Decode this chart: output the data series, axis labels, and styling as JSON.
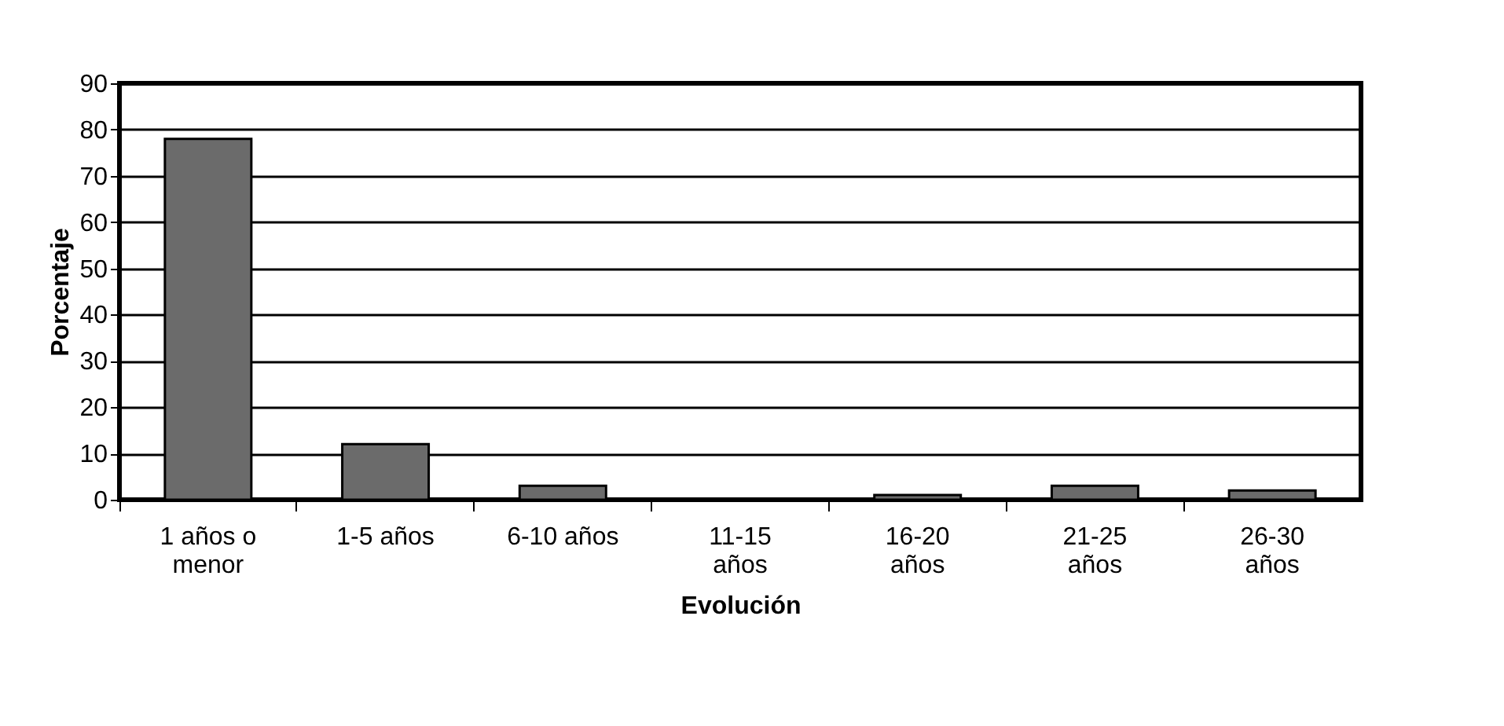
{
  "chart_data": {
    "type": "bar",
    "xlabel": "Evolución",
    "ylabel": "Porcentaje",
    "categories": [
      "1 años o menor",
      "1-5 años",
      "6-10 años",
      "11-15 años",
      "16-20 años",
      "21-25 años",
      "26-30 años"
    ],
    "values": [
      78,
      12,
      3,
      0,
      1,
      3,
      2
    ],
    "color": "#6b6b6b",
    "ylim": [
      0,
      90
    ],
    "yticks": [
      0,
      10,
      20,
      30,
      40,
      50,
      60,
      70,
      80,
      90
    ],
    "grid": "y"
  }
}
